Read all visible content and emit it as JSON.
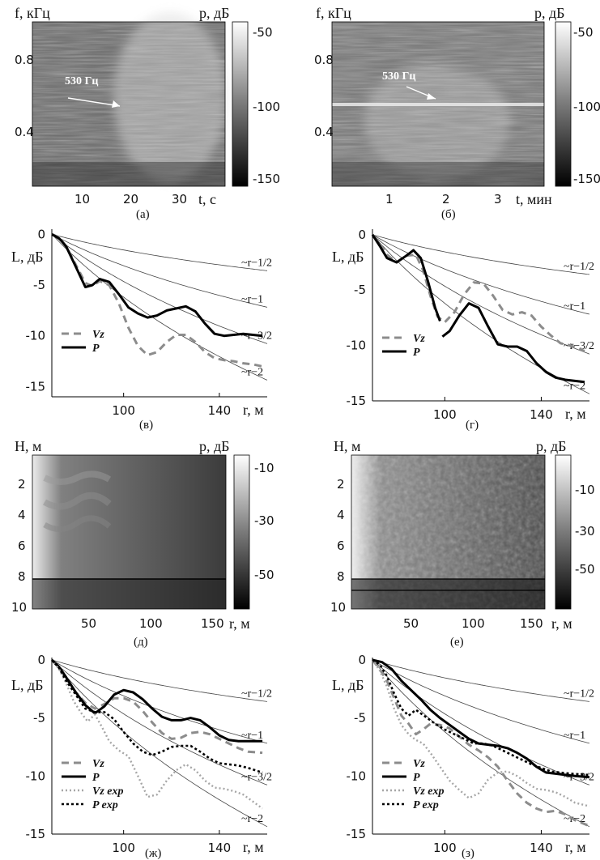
{
  "figure": {
    "captions": [
      "(а)",
      "(б)",
      "(в)",
      "(г)",
      "(д)",
      "(е)",
      "(ж)",
      "(з)"
    ]
  },
  "colors": {
    "vz": "#8c8c8c",
    "p": "#000000",
    "vz_exp": "#a6a6a6",
    "p_exp": "#000000",
    "power_law": "#444444"
  },
  "chart_data": [
    {
      "id": "a",
      "type": "heatmap",
      "caption": "(а)",
      "xlabel": "t, с",
      "ylabel": "f, кГц",
      "colorbar_label": "p, дБ",
      "xlim": [
        2,
        38
      ],
      "ylim": [
        0.1,
        0.97
      ],
      "xticks": [
        "10",
        "20",
        "30"
      ],
      "yticks": [
        "0.4",
        "0.8"
      ],
      "colorbar_ticks": [
        "-50",
        "-100",
        "-150"
      ],
      "colorbar_range": [
        -155,
        -45
      ],
      "annotation": "530 Гц"
    },
    {
      "id": "b",
      "type": "heatmap",
      "caption": "(б)",
      "xlabel": "t, мин",
      "ylabel": "f, кГц",
      "colorbar_label": "p, дБ",
      "xlim": [
        0.2,
        3.9
      ],
      "ylim": [
        0.1,
        0.97
      ],
      "xticks": [
        "1",
        "2",
        "3"
      ],
      "yticks": [
        "0.4",
        "0.8"
      ],
      "colorbar_ticks": [
        "-50",
        "-100",
        "-150"
      ],
      "colorbar_range": [
        -155,
        -45
      ],
      "annotation": "530 Гц"
    },
    {
      "id": "c",
      "type": "line",
      "caption": "(в)",
      "xlabel": "r, м",
      "ylabel": "L, дБ",
      "xlim": [
        70,
        160
      ],
      "ylim": [
        -16,
        0.5
      ],
      "xticks": [
        "100",
        "140"
      ],
      "yticks": [
        "0",
        "-5",
        "-10",
        "-15"
      ],
      "power_law_labels": [
        "~r−1/2",
        "~r−1",
        "~r−3/2",
        "~r−2"
      ],
      "legend": [
        "Vz",
        "P"
      ],
      "series": [
        {
          "name": "Vz",
          "style": "dashed",
          "x": [
            70,
            73,
            76,
            80,
            84,
            87,
            90,
            94,
            98,
            102,
            106,
            110,
            114,
            118,
            122,
            126,
            130,
            134,
            138,
            142,
            146,
            150,
            154,
            158
          ],
          "y": [
            0,
            -0.3,
            -1.2,
            -3.0,
            -4.8,
            -5.1,
            -4.6,
            -5.0,
            -6.8,
            -9.2,
            -11.0,
            -11.9,
            -11.6,
            -10.6,
            -9.9,
            -9.9,
            -10.6,
            -11.6,
            -12.2,
            -12.4,
            -12.5,
            -12.7,
            -12.8,
            -13.0
          ]
        },
        {
          "name": "P",
          "style": "solid",
          "x": [
            70,
            73,
            76,
            80,
            84,
            87,
            90,
            94,
            98,
            102,
            106,
            110,
            114,
            118,
            122,
            126,
            130,
            134,
            138,
            142,
            146,
            150,
            154,
            158
          ],
          "y": [
            0,
            -0.4,
            -1.2,
            -3.2,
            -5.2,
            -5.0,
            -4.4,
            -4.7,
            -5.9,
            -7.2,
            -7.8,
            -8.2,
            -8.0,
            -7.5,
            -7.3,
            -7.1,
            -7.6,
            -8.8,
            -9.8,
            -10.0,
            -9.9,
            -9.8,
            -9.9,
            -10.0
          ]
        }
      ]
    },
    {
      "id": "d",
      "type": "line",
      "caption": "(г)",
      "xlabel": "r, м",
      "ylabel": "L, дБ",
      "xlim": [
        70,
        160
      ],
      "ylim": [
        -15,
        0.5
      ],
      "xticks": [
        "100",
        "140"
      ],
      "yticks": [
        "0",
        "-5",
        "-10",
        "-15"
      ],
      "power_law_labels": [
        "~r−1/2",
        "~r−1",
        "~r−3/2",
        "~r−2"
      ],
      "legend": [
        "Vz",
        "P"
      ],
      "series": [
        {
          "name": "Vz",
          "style": "dashed",
          "x": [
            70,
            73,
            76,
            80,
            84,
            88,
            91,
            94,
            97,
            100,
            104,
            108,
            112,
            116,
            120,
            124,
            128,
            132,
            136,
            140,
            144,
            148,
            152,
            158
          ],
          "y": [
            0,
            -0.8,
            -1.8,
            -2.5,
            -1.9,
            -1.8,
            -3.2,
            -5.5,
            -7.4,
            -7.9,
            -7.0,
            -5.4,
            -4.3,
            -4.4,
            -5.5,
            -6.8,
            -7.2,
            -7.0,
            -7.3,
            -8.3,
            -9.1,
            -9.8,
            -10.0,
            -10.5
          ]
        },
        {
          "name": "P",
          "style": "solid",
          "x": [
            70,
            73,
            76,
            80,
            84,
            87,
            90,
            93,
            96,
            98,
            null,
            99,
            102,
            106,
            110,
            114,
            118,
            122,
            126,
            130,
            134,
            138,
            142,
            146,
            150,
            154,
            158
          ],
          "y": [
            0,
            -1.0,
            -2.1,
            -2.5,
            -1.9,
            -1.4,
            -2.1,
            -4.2,
            -6.6,
            -7.8,
            null,
            -9.2,
            -8.7,
            -7.3,
            -6.2,
            -6.6,
            -8.3,
            -9.9,
            -10.1,
            -10.1,
            -10.5,
            -11.6,
            -12.4,
            -12.9,
            -13.1,
            -13.2,
            -13.3
          ]
        }
      ]
    },
    {
      "id": "e",
      "type": "heatmap",
      "caption": "(д)",
      "xlabel": "r, м",
      "ylabel": "H, м",
      "colorbar_label": "p, дБ",
      "xlim": [
        0,
        160
      ],
      "ylim": [
        10,
        0
      ],
      "xticks": [
        "50",
        "100",
        "150"
      ],
      "yticks": [
        "2",
        "4",
        "6",
        "8",
        "10"
      ],
      "colorbar_ticks": [
        "-10",
        "-30",
        "-50"
      ],
      "colorbar_range": [
        -62,
        0
      ],
      "horizontal_lines": [
        8
      ]
    },
    {
      "id": "f",
      "type": "heatmap",
      "caption": "(е)",
      "xlabel": "r, м",
      "ylabel": "H, м",
      "colorbar_label": "p, дБ",
      "xlim": [
        0,
        160
      ],
      "ylim": [
        10,
        0
      ],
      "xticks": [
        "50",
        "100",
        "150"
      ],
      "yticks": [
        "2",
        "4",
        "6",
        "8",
        "10"
      ],
      "colorbar_ticks": [
        "-10",
        "-30",
        "-50"
      ],
      "colorbar_range": [
        -62,
        0
      ],
      "horizontal_lines": [
        8,
        8.8
      ]
    },
    {
      "id": "g",
      "type": "line",
      "caption": "(ж)",
      "xlabel": "r, м",
      "ylabel": "L, дБ",
      "xlim": [
        70,
        160
      ],
      "ylim": [
        -15,
        0.2
      ],
      "xticks": [
        "100",
        "140"
      ],
      "yticks": [
        "0",
        "-5",
        "-10",
        "-15"
      ],
      "power_law_labels": [
        "~r−1/2",
        "~r−1",
        "~r−3/2",
        "~r−2"
      ],
      "legend": [
        "Vz",
        "P",
        "Vz exp",
        "P exp"
      ],
      "series": [
        {
          "name": "Vz",
          "style": "dashed",
          "x": [
            70,
            73,
            76,
            80,
            84,
            88,
            92,
            96,
            100,
            104,
            108,
            112,
            116,
            120,
            124,
            128,
            132,
            136,
            140,
            144,
            148,
            152,
            158
          ],
          "y": [
            0,
            -0.6,
            -1.6,
            -2.8,
            -3.7,
            -4.2,
            -3.8,
            -3.3,
            -3.3,
            -3.6,
            -4.4,
            -5.4,
            -6.3,
            -6.8,
            -6.7,
            -6.3,
            -6.2,
            -6.4,
            -6.8,
            -7.2,
            -7.6,
            -7.9,
            -8.0
          ]
        },
        {
          "name": "P",
          "style": "solid",
          "x": [
            70,
            73,
            76,
            80,
            84,
            88,
            92,
            96,
            100,
            104,
            108,
            112,
            116,
            120,
            124,
            128,
            132,
            136,
            140,
            144,
            148,
            152,
            158
          ],
          "y": [
            0,
            -0.6,
            -1.5,
            -2.8,
            -3.9,
            -4.6,
            -4.0,
            -3.0,
            -2.6,
            -2.8,
            -3.4,
            -4.2,
            -4.9,
            -5.2,
            -5.2,
            -5.0,
            -5.2,
            -5.8,
            -6.5,
            -6.9,
            -7.0,
            -7.0,
            -7.0
          ]
        },
        {
          "name": "Vz exp",
          "style": "dotted",
          "x": [
            70,
            73,
            76,
            79,
            82,
            85,
            88,
            91,
            94,
            98,
            102,
            106,
            110,
            114,
            118,
            122,
            126,
            130,
            134,
            138,
            142,
            146,
            150,
            154,
            158
          ],
          "y": [
            0,
            -0.8,
            -2.0,
            -3.5,
            -4.5,
            -5.3,
            -4.7,
            -5.8,
            -7.0,
            -7.8,
            -8.3,
            -10.0,
            -11.8,
            -11.6,
            -10.4,
            -9.5,
            -9.0,
            -9.5,
            -10.4,
            -11.0,
            -11.1,
            -11.3,
            -11.6,
            -12.2,
            -12.8
          ]
        },
        {
          "name": "P exp",
          "style": "dotted-dark",
          "x": [
            70,
            73,
            76,
            80,
            84,
            88,
            92,
            96,
            100,
            104,
            108,
            112,
            116,
            120,
            124,
            128,
            132,
            136,
            140,
            144,
            148,
            152,
            158
          ],
          "y": [
            0,
            -0.7,
            -1.8,
            -3.0,
            -4.2,
            -4.5,
            -4.5,
            -5.1,
            -6.2,
            -7.2,
            -7.9,
            -8.2,
            -7.9,
            -7.5,
            -7.4,
            -7.4,
            -7.9,
            -8.5,
            -8.9,
            -9.0,
            -9.1,
            -9.3,
            -9.7
          ]
        }
      ]
    },
    {
      "id": "h",
      "type": "line",
      "caption": "(з)",
      "xlabel": "r, м",
      "ylabel": "L, дБ",
      "xlim": [
        70,
        160
      ],
      "ylim": [
        -15,
        0.2
      ],
      "xticks": [
        "100",
        "140"
      ],
      "yticks": [
        "0",
        "-5",
        "-10",
        "-15"
      ],
      "power_law_labels": [
        "~r−1/2",
        "~r−1",
        "~r−3/2",
        "~r−2"
      ],
      "legend": [
        "Vz",
        "P",
        "Vz exp",
        "P exp"
      ],
      "series": [
        {
          "name": "Vz",
          "style": "dashed",
          "x": [
            70,
            73,
            76,
            79,
            82,
            85,
            88,
            91,
            94,
            98,
            102,
            106,
            110,
            114,
            118,
            122,
            126,
            130,
            134,
            138,
            142,
            146,
            150,
            154,
            160
          ],
          "y": [
            0,
            -0.8,
            -1.8,
            -3.3,
            -4.8,
            -5.5,
            -6.4,
            -6.0,
            -5.5,
            -5.6,
            -5.9,
            -6.6,
            -7.3,
            -7.8,
            -8.4,
            -9.2,
            -10.4,
            -11.5,
            -12.3,
            -12.8,
            -13.1,
            -13.0,
            -13.3,
            -13.8,
            -14.3
          ]
        },
        {
          "name": "P",
          "style": "solid",
          "x": [
            70,
            74,
            78,
            82,
            86,
            90,
            94,
            98,
            102,
            106,
            110,
            114,
            118,
            122,
            126,
            130,
            134,
            138,
            142,
            146,
            150,
            154,
            160
          ],
          "y": [
            0,
            -0.2,
            -0.8,
            -1.8,
            -2.6,
            -3.4,
            -4.3,
            -5.0,
            -5.6,
            -6.2,
            -6.8,
            -7.2,
            -7.3,
            -7.4,
            -7.6,
            -8.0,
            -8.5,
            -9.2,
            -9.7,
            -9.8,
            -9.9,
            -10.0,
            -10.1
          ]
        },
        {
          "name": "Vz exp",
          "style": "dotted",
          "x": [
            70,
            73,
            76,
            79,
            82,
            85,
            88,
            91,
            94,
            98,
            102,
            106,
            110,
            114,
            118,
            122,
            126,
            130,
            134,
            138,
            142,
            146,
            150,
            154,
            160
          ],
          "y": [
            0,
            -0.9,
            -2.3,
            -4.2,
            -5.6,
            -6.4,
            -6.9,
            -7.2,
            -8.0,
            -9.2,
            -10.4,
            -11.2,
            -11.9,
            -11.5,
            -10.3,
            -9.7,
            -9.6,
            -10.0,
            -10.6,
            -11.1,
            -11.2,
            -11.4,
            -11.8,
            -12.3,
            -12.6
          ]
        },
        {
          "name": "P exp",
          "style": "dotted-dark",
          "x": [
            70,
            73,
            76,
            79,
            82,
            85,
            88,
            92,
            96,
            100,
            104,
            108,
            112,
            116,
            120,
            124,
            128,
            132,
            136,
            140,
            144,
            148,
            152,
            160
          ],
          "y": [
            0,
            -0.4,
            -1.4,
            -2.9,
            -4.2,
            -4.8,
            -4.3,
            -4.9,
            -5.5,
            -6.0,
            -6.4,
            -6.8,
            -7.2,
            -7.2,
            -7.4,
            -7.8,
            -8.2,
            -8.6,
            -9.0,
            -9.3,
            -9.6,
            -9.7,
            -9.8,
            -9.9
          ]
        }
      ]
    }
  ]
}
